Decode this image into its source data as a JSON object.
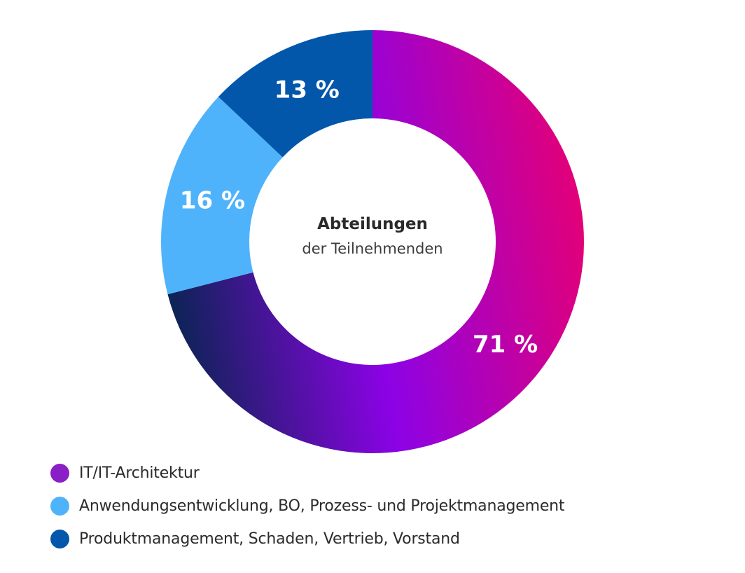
{
  "chart_data": {
    "type": "pie",
    "variant": "donut",
    "title": "Abteilungen",
    "subtitle": "der Teilnehmenden",
    "slices": [
      {
        "label": "IT/IT-Architektur",
        "value": 71,
        "value_label": "71 %",
        "color": "#8b1fc6"
      },
      {
        "label": "Anwendungsentwicklung, BO, Prozess- und Projektmanagement",
        "value": 16,
        "value_label": "16 %",
        "color": "#4fb3fb"
      },
      {
        "label": "Produktmanagement, Schaden, Vertrieb, Vorstand",
        "value": 13,
        "value_label": "13 %",
        "color": "#0257ab"
      }
    ],
    "legend_position": "bottom-left",
    "gradient_colors": {
      "start": "#e1007a",
      "mid": "#8c02e6",
      "end": "#0b2454"
    }
  }
}
